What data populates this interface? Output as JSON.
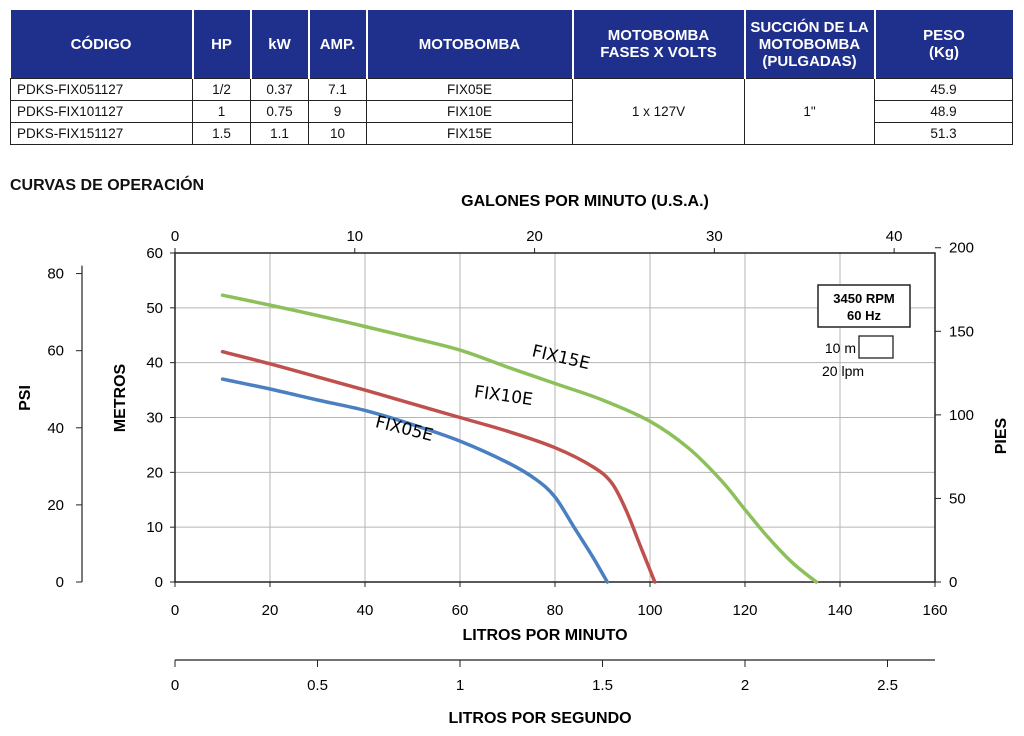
{
  "table": {
    "headers": [
      "CÓDIGO",
      "HP",
      "kW",
      "AMP.",
      "MOTOBOMBA",
      "MOTOBOMBA\nFASES X VOLTS",
      "SUCCIÓN DE LA\nMOTOBOMBA\n(PULGADAS)",
      "PESO\n(Kg)"
    ],
    "rows": [
      {
        "codigo": "PDKS-FIX051127",
        "hp": "1/2",
        "kw": "0.37",
        "amp": "7.1",
        "motobomba": "FIX05E",
        "peso": "45.9"
      },
      {
        "codigo": "PDKS-FIX101127",
        "hp": "1",
        "kw": "0.75",
        "amp": "9",
        "motobomba": "FIX10E",
        "peso": "48.9"
      },
      {
        "codigo": "PDKS-FIX151127",
        "hp": "1.5",
        "kw": "1.1",
        "amp": "10",
        "motobomba": "FIX15E",
        "peso": "51.3"
      }
    ],
    "fases_volts": "1 x 127V",
    "succion": "1\""
  },
  "section_title": "CURVAS DE OPERACIÓN",
  "chart_data": {
    "type": "line",
    "title": "CURVAS DE OPERACIÓN",
    "xlabel": "LITROS POR MINUTO",
    "ylabel": "METROS",
    "xlim": [
      0,
      160
    ],
    "ylim": [
      0,
      60
    ],
    "x_ticks": [
      0,
      20,
      40,
      60,
      80,
      100,
      120,
      140,
      160
    ],
    "y_ticks": [
      0,
      10,
      20,
      30,
      40,
      50,
      60
    ],
    "grid": true,
    "top_axis": {
      "label": "GALONES POR MINUTO (U.S.A.)",
      "ticks": [
        0,
        10,
        20,
        30,
        40
      ],
      "lpm_per_unit": 3.785
    },
    "right_axis": {
      "label": "PIES",
      "ticks": [
        0,
        50,
        100,
        150,
        200
      ],
      "m_per_unit": 0.3048
    },
    "left_axis": {
      "label": "PSI",
      "ticks": [
        0,
        20,
        40,
        60,
        80
      ],
      "m_per_unit": 0.7031
    },
    "bottom_axis2": {
      "label": "LITROS POR SEGUNDO",
      "ticks": [
        "0",
        "0.5",
        "1",
        "1.5",
        "2",
        "2.5"
      ],
      "lpm_per_unit": 60
    },
    "legend_box": {
      "line1": "3450 RPM",
      "line2": "60 Hz",
      "scale1": "10 m",
      "scale2": "20 lpm"
    },
    "series": [
      {
        "name": "FIX05E",
        "color": "#4a7fc1",
        "points": [
          [
            10,
            37
          ],
          [
            20,
            35.2
          ],
          [
            30,
            33.2
          ],
          [
            40,
            31.3
          ],
          [
            50,
            28.7
          ],
          [
            60,
            25.7
          ],
          [
            70,
            21.8
          ],
          [
            76,
            18.7
          ],
          [
            80,
            15.5
          ],
          [
            84,
            10
          ],
          [
            88,
            4.5
          ],
          [
            91,
            0
          ]
        ]
      },
      {
        "name": "FIX10E",
        "color": "#c0504d",
        "points": [
          [
            10,
            42
          ],
          [
            20,
            39.8
          ],
          [
            30,
            37.4
          ],
          [
            40,
            35
          ],
          [
            50,
            32.5
          ],
          [
            60,
            30
          ],
          [
            70,
            27.5
          ],
          [
            80,
            24.5
          ],
          [
            88,
            21
          ],
          [
            92,
            18
          ],
          [
            95,
            13
          ],
          [
            98,
            6.5
          ],
          [
            101,
            0
          ]
        ]
      },
      {
        "name": "FIX15E",
        "color": "#8dc05a",
        "points": [
          [
            10,
            52.3
          ],
          [
            20,
            50.5
          ],
          [
            30,
            48.6
          ],
          [
            40,
            46.6
          ],
          [
            50,
            44.5
          ],
          [
            60,
            42.3
          ],
          [
            70,
            39.2
          ],
          [
            80,
            36.2
          ],
          [
            90,
            33.2
          ],
          [
            100,
            29.3
          ],
          [
            108,
            24.5
          ],
          [
            115,
            18.5
          ],
          [
            120,
            13.2
          ],
          [
            125,
            8
          ],
          [
            130,
            3.5
          ],
          [
            135,
            0
          ]
        ]
      }
    ]
  }
}
